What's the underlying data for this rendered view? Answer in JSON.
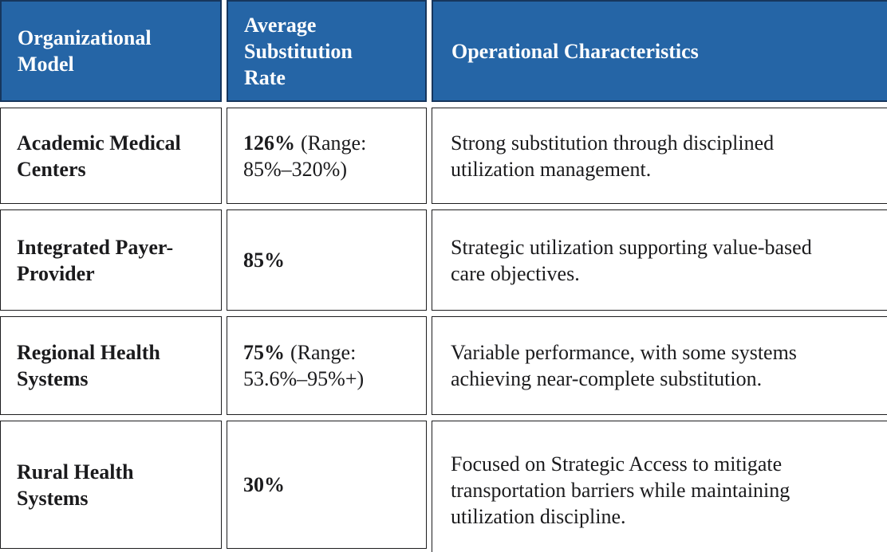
{
  "table": {
    "columns": [
      {
        "label": "Organizational Model"
      },
      {
        "label": "Average Substitution Rate"
      },
      {
        "label": "Operational Characteristics"
      }
    ],
    "rows": [
      {
        "model": "Academic Medical Centers",
        "rate_bold": "126%",
        "rate_rest": "(Range: 85%–320%)",
        "characteristics": "Strong substitution through disciplined utilization management."
      },
      {
        "model": "Integrated Payer-Provider",
        "rate_bold": "85%",
        "rate_rest": "",
        "characteristics": "Strategic utilization supporting value-based care objectives."
      },
      {
        "model": "Regional Health Systems",
        "rate_bold": "75%",
        "rate_rest": "(Range: 53.6%–95%+)",
        "characteristics": "Variable performance, with some systems achieving near-complete substitution."
      },
      {
        "model": "Rural Health Systems",
        "rate_bold": "30%",
        "rate_rest": "",
        "characteristics": "Focused on Strategic Access to mitigate transportation barriers while maintaining utilization discipline."
      }
    ],
    "colors": {
      "header_bg": "#2565a6",
      "header_border": "#17365d",
      "header_text": "#ffffff",
      "cell_border": "#1d1d1f",
      "cell_text": "#1b1b1d"
    }
  }
}
